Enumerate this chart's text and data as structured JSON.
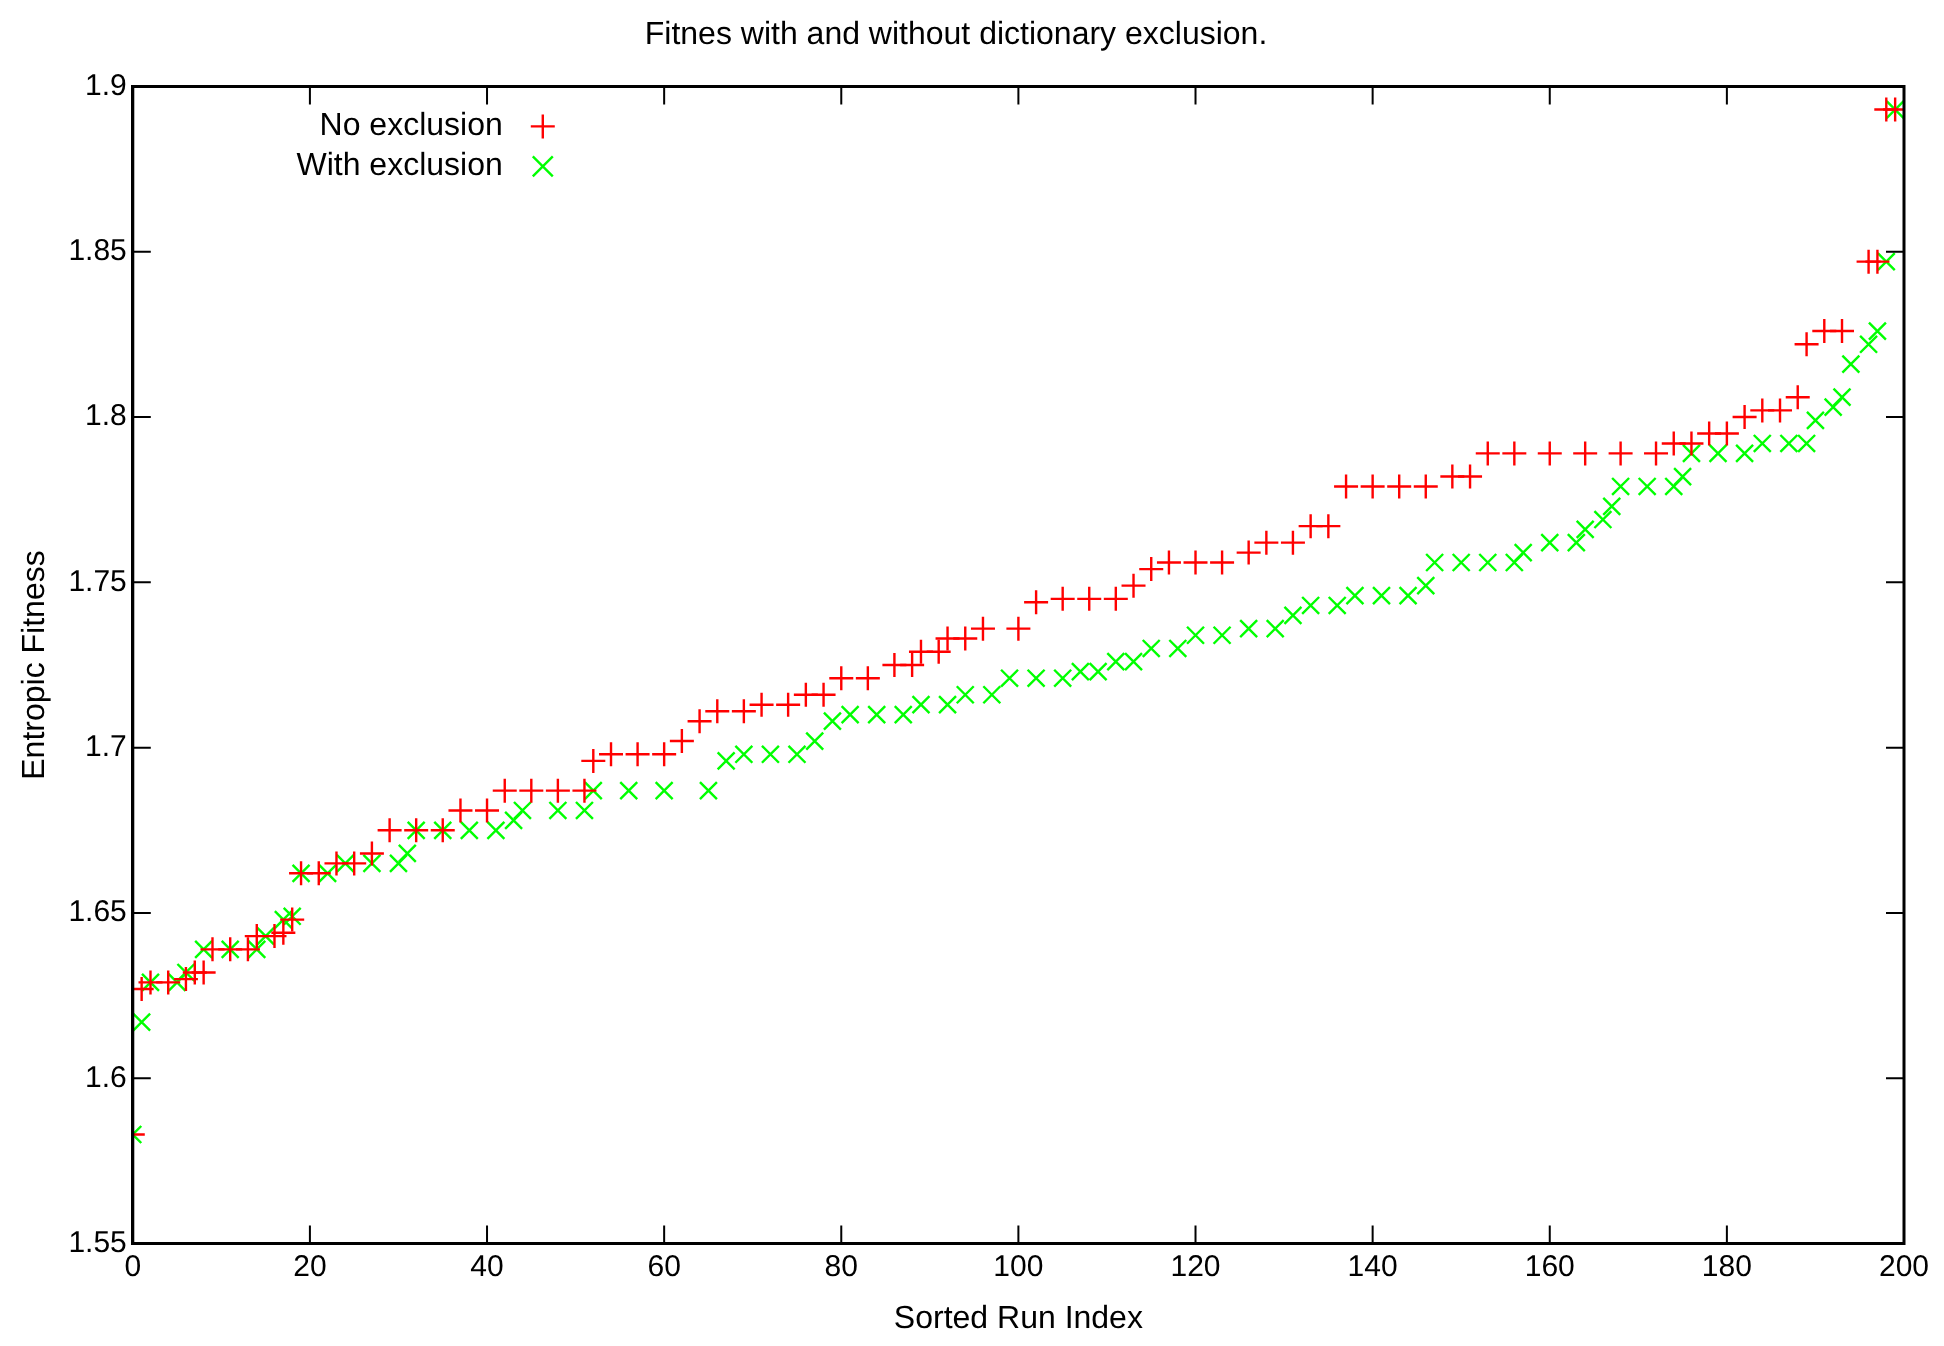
{
  "chart_data": {
    "type": "scatter",
    "title": "Fitnes with and without dictionary exclusion.",
    "xlabel": "Sorted Run Index",
    "ylabel": "Entropic Fitness",
    "xlim": [
      0,
      200
    ],
    "xticks": [
      0,
      20,
      40,
      60,
      80,
      100,
      120,
      140,
      160,
      180,
      200
    ],
    "ylim": [
      1.55,
      1.9
    ],
    "yticks": [
      {
        "value": 1.55,
        "label": "1.55"
      },
      {
        "value": 1.6,
        "label": "1.6"
      },
      {
        "value": 1.65,
        "label": "1.65"
      },
      {
        "value": 1.7,
        "label": "1.7"
      },
      {
        "value": 1.75,
        "label": "1.75"
      },
      {
        "value": 1.8,
        "label": "1.8"
      },
      {
        "value": 1.85,
        "label": "1.85"
      },
      {
        "value": 1.9,
        "label": "1.9"
      }
    ],
    "grid": false,
    "legend": "top left",
    "marker": "cross",
    "series": [
      {
        "name": "No exclusion",
        "color": "#ff0000",
        "x": [
          0,
          1,
          2,
          4,
          6,
          7,
          8,
          9,
          11,
          13,
          14,
          16,
          17,
          18,
          19,
          21,
          23,
          25,
          27,
          29,
          32,
          35,
          37,
          40,
          42,
          45,
          48,
          51,
          52,
          54,
          57,
          60,
          62,
          64,
          66,
          69,
          71,
          74,
          76,
          78,
          80,
          83,
          86,
          88,
          89,
          91,
          92,
          94,
          96,
          100,
          102,
          105,
          108,
          111,
          113,
          115,
          117,
          120,
          123,
          126,
          128,
          131,
          133,
          135,
          137,
          140,
          143,
          146,
          149,
          151,
          153,
          156,
          160,
          164,
          168,
          172,
          174,
          176,
          178,
          180,
          182,
          184,
          186,
          188,
          189,
          191,
          193,
          196,
          197,
          198,
          199
        ],
        "values": [
          1.583,
          1.627,
          1.629,
          1.629,
          1.63,
          1.632,
          1.632,
          1.639,
          1.639,
          1.639,
          1.643,
          1.643,
          1.644,
          1.648,
          1.662,
          1.662,
          1.665,
          1.665,
          1.668,
          1.675,
          1.675,
          1.675,
          1.681,
          1.681,
          1.687,
          1.687,
          1.687,
          1.687,
          1.696,
          1.698,
          1.698,
          1.698,
          1.702,
          1.708,
          1.711,
          1.711,
          1.713,
          1.713,
          1.716,
          1.716,
          1.721,
          1.721,
          1.725,
          1.725,
          1.729,
          1.729,
          1.733,
          1.733,
          1.736,
          1.736,
          1.744,
          1.745,
          1.745,
          1.745,
          1.749,
          1.754,
          1.756,
          1.756,
          1.756,
          1.759,
          1.762,
          1.762,
          1.767,
          1.767,
          1.779,
          1.779,
          1.779,
          1.779,
          1.782,
          1.782,
          1.789,
          1.789,
          1.789,
          1.789,
          1.789,
          1.789,
          1.792,
          1.792,
          1.795,
          1.795,
          1.8,
          1.802,
          1.802,
          1.806,
          1.822,
          1.826,
          1.826,
          1.847,
          1.847,
          1.893,
          1.893
        ]
      },
      {
        "name": "With exclusion",
        "color": "#00ff00",
        "x": [
          0,
          1,
          2,
          5,
          6,
          8,
          11,
          14,
          15,
          17,
          18,
          19,
          22,
          24,
          27,
          30,
          31,
          32,
          35,
          38,
          41,
          43,
          44,
          48,
          51,
          52,
          56,
          60,
          65,
          67,
          69,
          72,
          75,
          77,
          79,
          81,
          84,
          87,
          89,
          92,
          94,
          97,
          99,
          102,
          105,
          107,
          109,
          111,
          113,
          115,
          118,
          120,
          123,
          126,
          129,
          131,
          133,
          136,
          138,
          141,
          144,
          146,
          147,
          150,
          153,
          156,
          157,
          160,
          163,
          164,
          166,
          167,
          168,
          171,
          174,
          175,
          176,
          179,
          182,
          184,
          187,
          189,
          190,
          192,
          193,
          194,
          196,
          197,
          198,
          199
        ],
        "values": [
          1.583,
          1.617,
          1.629,
          1.629,
          1.632,
          1.639,
          1.639,
          1.639,
          1.643,
          1.648,
          1.649,
          1.662,
          1.662,
          1.665,
          1.665,
          1.665,
          1.668,
          1.675,
          1.675,
          1.675,
          1.675,
          1.678,
          1.681,
          1.681,
          1.681,
          1.687,
          1.687,
          1.687,
          1.687,
          1.696,
          1.698,
          1.698,
          1.698,
          1.702,
          1.708,
          1.71,
          1.71,
          1.71,
          1.713,
          1.713,
          1.716,
          1.716,
          1.721,
          1.721,
          1.721,
          1.723,
          1.723,
          1.726,
          1.726,
          1.73,
          1.73,
          1.734,
          1.734,
          1.736,
          1.736,
          1.74,
          1.743,
          1.743,
          1.746,
          1.746,
          1.746,
          1.749,
          1.756,
          1.756,
          1.756,
          1.756,
          1.759,
          1.762,
          1.762,
          1.766,
          1.769,
          1.773,
          1.779,
          1.779,
          1.779,
          1.782,
          1.789,
          1.789,
          1.789,
          1.792,
          1.792,
          1.792,
          1.799,
          1.803,
          1.806,
          1.816,
          1.822,
          1.826,
          1.847,
          1.893
        ]
      }
    ]
  }
}
